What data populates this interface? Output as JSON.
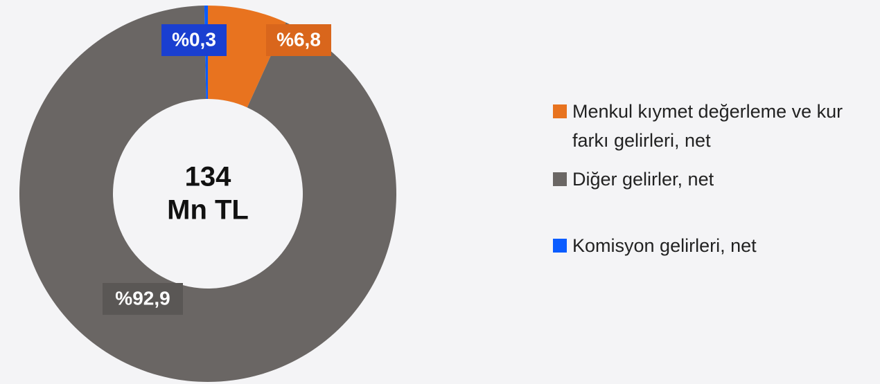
{
  "chart_data": {
    "type": "pie",
    "categories": [
      "Menkul kıymet değerleme ve kur farkı gelirleri, net",
      "Diğer gelirler, net",
      "Komisyon gelirleri, net"
    ],
    "values": [
      6.8,
      92.9,
      0.3
    ],
    "value_labels": [
      "%6,8",
      "%92,9",
      "%0,3"
    ],
    "colors": [
      "#e8731f",
      "#6a6664",
      "#0a5cff"
    ],
    "center_label": [
      "134",
      "Mn TL"
    ],
    "legend": "right"
  }
}
